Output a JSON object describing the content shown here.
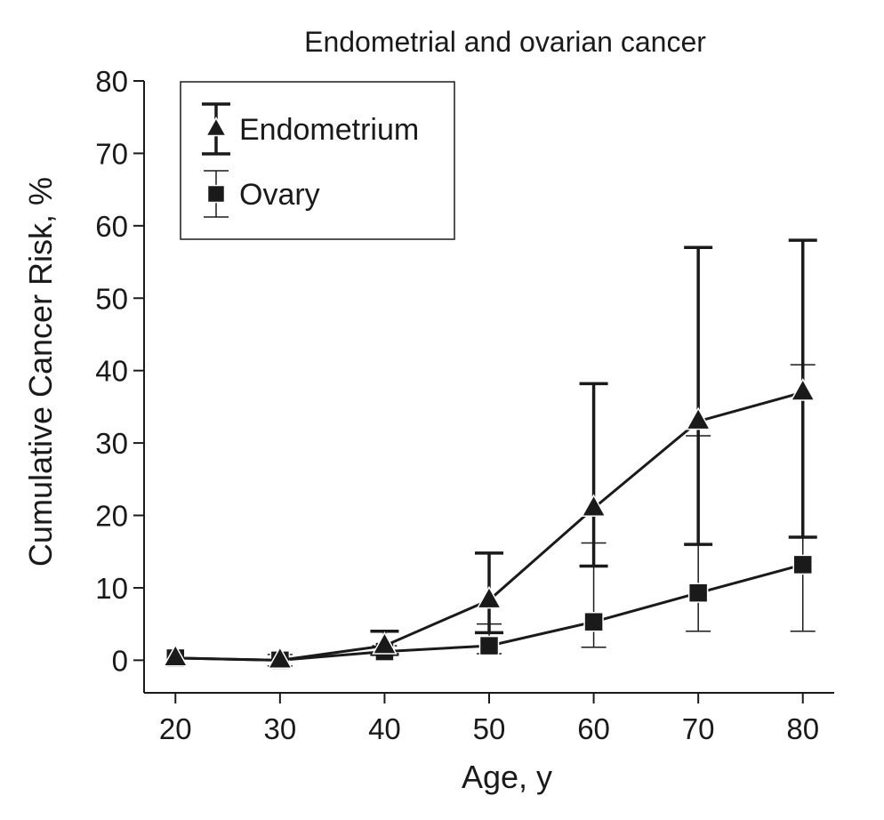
{
  "chart_data": {
    "type": "line",
    "title": "Endometrial and ovarian cancer",
    "xlabel": "Age, y",
    "ylabel": "Cumulative Cancer Risk, %",
    "x": [
      20,
      30,
      40,
      50,
      60,
      70,
      80
    ],
    "xlim": [
      17,
      83
    ],
    "ylim": [
      -4.5,
      80
    ],
    "xticks": [
      20,
      30,
      40,
      50,
      60,
      70,
      80
    ],
    "yticks": [
      0,
      10,
      20,
      30,
      40,
      50,
      60,
      70,
      80
    ],
    "legend_position": "top-left",
    "series": [
      {
        "name": "Endometrium",
        "marker": "triangle",
        "errorbar_style": "thick",
        "values": [
          0.3,
          0.0,
          2.0,
          8.3,
          21.0,
          33.0,
          37.0
        ],
        "lower": [
          0.3,
          0.0,
          0.8,
          3.8,
          13.0,
          16.0,
          17.0
        ],
        "upper": [
          0.3,
          0.0,
          4.0,
          14.8,
          38.2,
          57.0,
          58.0
        ],
        "color": "#1a1a1a"
      },
      {
        "name": "Ovary",
        "marker": "square",
        "errorbar_style": "thin",
        "values": [
          0.3,
          0.0,
          1.2,
          2.0,
          5.3,
          9.3,
          13.2
        ],
        "lower": [
          0.3,
          -0.8,
          0.7,
          0.9,
          1.8,
          4.0,
          4.0
        ],
        "upper": [
          0.3,
          0.8,
          2.0,
          5.0,
          16.2,
          31.0,
          40.8
        ],
        "color": "#1a1a1a"
      }
    ]
  }
}
